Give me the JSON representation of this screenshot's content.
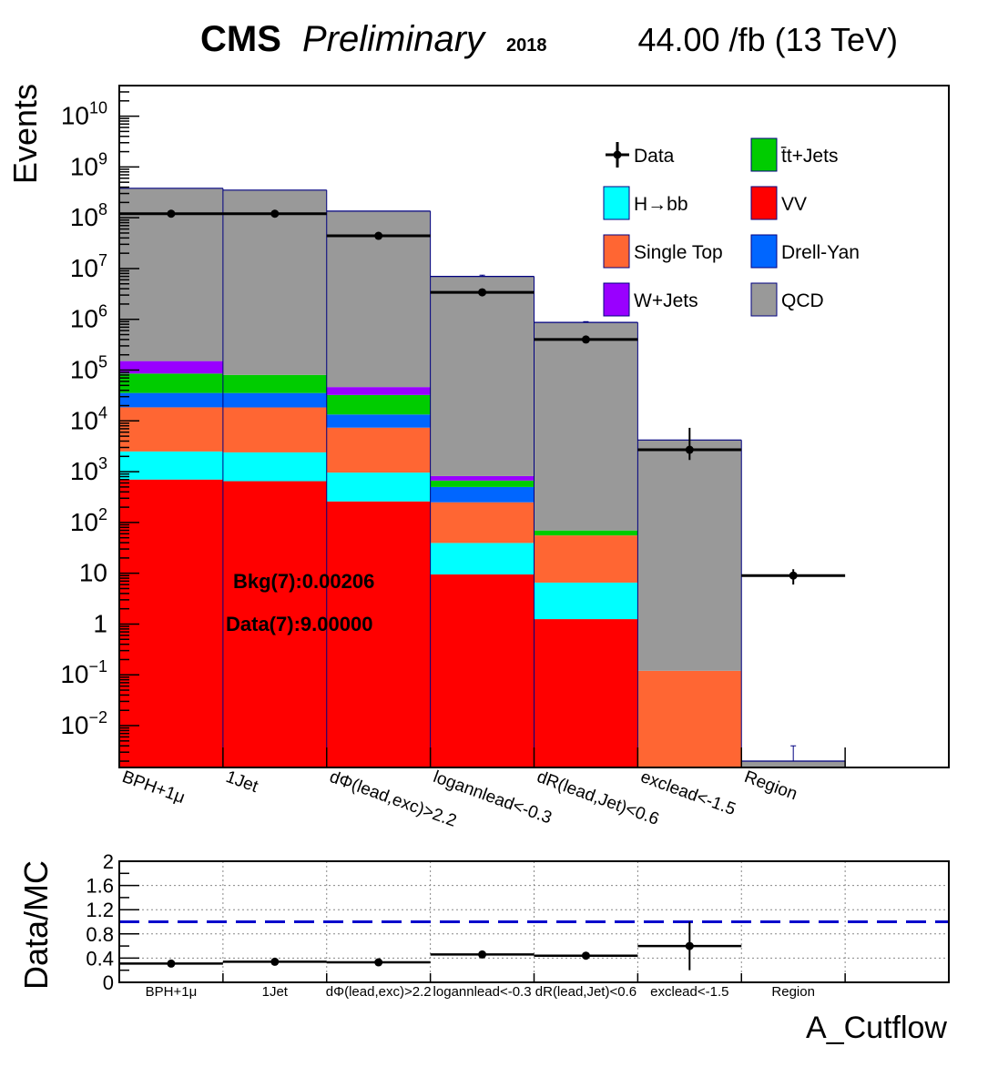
{
  "header": {
    "experiment": "CMS",
    "status": "Preliminary",
    "year": "2018",
    "lumi": "44.00 /fb (13 TeV)"
  },
  "chart_data": [
    {
      "type": "bar",
      "stacked": true,
      "log_y": true,
      "ylabel": "Events",
      "ylim": [
        0.0015,
        40000000000
      ],
      "categories": [
        "BPH+1μ",
        "1Jet",
        "dΦ(lead,exc)>2.2",
        "logannlead<-0.3",
        "dR(lead,Jet)<0.6",
        "exclead<-1.5",
        "Region"
      ],
      "y_ticks": [
        {
          "value": 0.01,
          "base": "10",
          "exp": "−2"
        },
        {
          "value": 0.1,
          "base": "10",
          "exp": "−1"
        },
        {
          "value": 1,
          "base": "1",
          "exp": ""
        },
        {
          "value": 10,
          "base": "10",
          "exp": ""
        },
        {
          "value": 100,
          "base": "10",
          "exp": "2"
        },
        {
          "value": 1000,
          "base": "10",
          "exp": "3"
        },
        {
          "value": 10000,
          "base": "10",
          "exp": "4"
        },
        {
          "value": 100000,
          "base": "10",
          "exp": "5"
        },
        {
          "value": 1000000,
          "base": "10",
          "exp": "6"
        },
        {
          "value": 10000000,
          "base": "10",
          "exp": "7"
        },
        {
          "value": 100000000,
          "base": "10",
          "exp": "8"
        },
        {
          "value": 1000000000,
          "base": "10",
          "exp": "9"
        },
        {
          "value": 10000000000,
          "base": "10",
          "exp": "10"
        }
      ],
      "series": [
        {
          "name": "VV",
          "color": "#ff0000",
          "values": [
            700,
            650,
            260,
            9.5,
            1.25,
            0,
            0
          ]
        },
        {
          "name": "H→bb",
          "color": "#00ffff",
          "values": [
            1800,
            1750,
            700,
            30,
            5.3,
            0,
            0
          ]
        },
        {
          "name": "Single Top",
          "color": "#ff6633",
          "values": [
            16000,
            16000,
            6400,
            210,
            49,
            0.12,
            0
          ]
        },
        {
          "name": "Drell-Yan",
          "color": "#0066ff",
          "values": [
            17000,
            17000,
            6000,
            250,
            0,
            0,
            0
          ]
        },
        {
          "name": "t̄t+Jets",
          "color": "#00cc00",
          "values": [
            50000,
            45000,
            19000,
            170,
            14,
            0,
            0
          ]
        },
        {
          "name": "W+Jets",
          "color": "#9900ff",
          "values": [
            65000,
            0,
            14000,
            150,
            0,
            0,
            0
          ]
        },
        {
          "name": "QCD",
          "color": "#999999",
          "values": [
            380000000,
            350000000,
            135000000,
            7000000,
            870000,
            4200,
            0.002
          ]
        }
      ],
      "data": {
        "name": "Data",
        "values": [
          120000000,
          120000000,
          44000000,
          3400000,
          400000,
          2700,
          9
        ],
        "err_low": [
          11000,
          11000,
          6600,
          1840,
          632,
          1000,
          3
        ],
        "err_high": [
          11000,
          11000,
          6600,
          1840,
          632,
          4600,
          3
        ]
      },
      "mc_error_high": [
        null,
        null,
        null,
        7400000,
        900000,
        null,
        0.004
      ],
      "legend": {
        "placement": "top-right",
        "columns": 2,
        "entries": [
          "Data",
          "t̄t+Jets",
          "H→bb",
          "VV",
          "Single Top",
          "Drell-Yan",
          "W+Jets",
          "QCD"
        ]
      },
      "annotations": [
        "Bkg(7):0.00206",
        "Data(7):9.00000"
      ]
    },
    {
      "type": "scatter",
      "ylabel": "Data/MC",
      "xlabel": "A_Cutflow",
      "ylim": [
        0,
        2
      ],
      "y_ticks": [
        "0",
        "0.4",
        "0.8",
        "1.2",
        "1.6",
        "2"
      ],
      "grid": true,
      "reference_line": 1.0,
      "categories": [
        "BPH+1μ",
        "1Jet",
        "dΦ(lead,exc)>2.2",
        "logannlead<-0.3",
        "dR(lead,Jet)<0.6",
        "exclead<-1.5",
        "Region"
      ],
      "values": [
        0.31,
        0.34,
        0.33,
        0.46,
        0.44,
        0.6,
        null
      ],
      "err": [
        0,
        0,
        0,
        0,
        0,
        0.4,
        null
      ]
    }
  ]
}
